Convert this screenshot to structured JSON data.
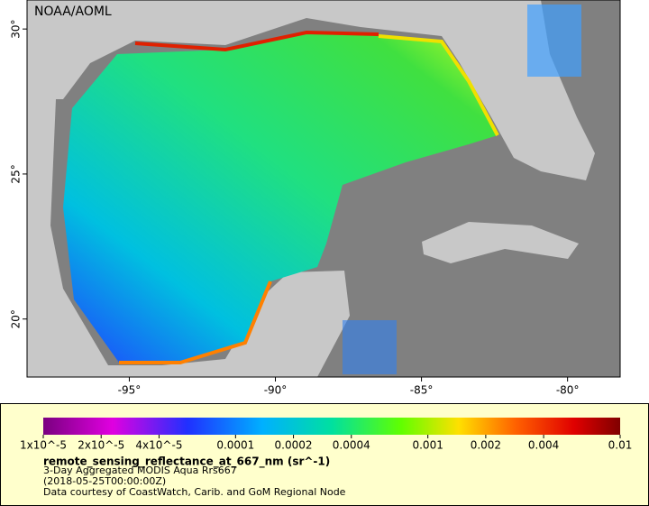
{
  "map": {
    "credit": "NOAA/AOML",
    "xlim": [
      -98.5,
      -78.2
    ],
    "ylim": [
      18,
      31
    ],
    "xticks": [
      {
        "value": -95,
        "label": "-95°"
      },
      {
        "value": -90,
        "label": "-90°"
      },
      {
        "value": -85,
        "label": "-85°"
      },
      {
        "value": -80,
        "label": "-80°"
      }
    ],
    "yticks": [
      {
        "value": 20,
        "label": "20°"
      },
      {
        "value": 25,
        "label": "25°"
      },
      {
        "value": 30,
        "label": "30°"
      }
    ]
  },
  "legend": {
    "title": "remote_sensing_reflectance_at_667_nm (sr^-1)",
    "lines": [
      "3-Day Aggregated MODIS Aqua Rrs667",
      "(2018-05-25T00:00:00Z)",
      "Data courtesy of CoastWatch, Carib. and GoM Regional Node"
    ],
    "colorbar": {
      "range": [
        1e-05,
        0.01
      ],
      "scale": "log",
      "ticks": [
        {
          "value": 1e-05,
          "label": "1x10^-5"
        },
        {
          "value": 2e-05,
          "label": "2x10^-5"
        },
        {
          "value": 4e-05,
          "label": "4x10^-5"
        },
        0.0001,
        0.0002,
        0.0004,
        0.001,
        0.002,
        0.004,
        0.01
      ]
    }
  }
}
